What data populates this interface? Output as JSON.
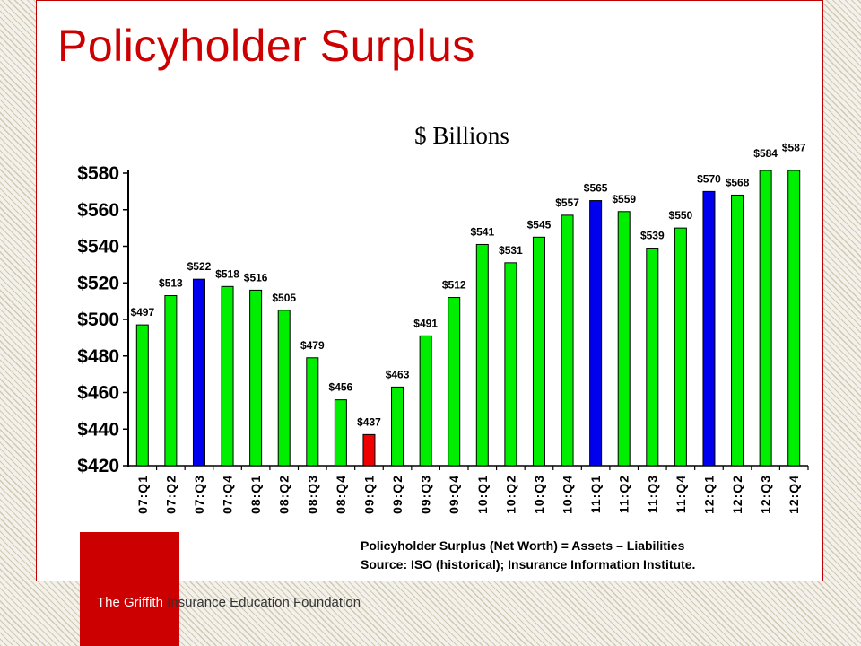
{
  "title": "Policyholder Surplus",
  "footnote": {
    "line1": "Policyholder Surplus  (Net Worth) = Assets – Liabilities",
    "line2": "Source: ISO (historical); Insurance Information Institute."
  },
  "footer": {
    "part1": "The Griffith",
    "part2": " Insurance Education Foundation"
  },
  "colors": {
    "title": "#cc0000",
    "green": "#00ee00",
    "blue": "#0000ee",
    "red": "#ee0000",
    "accent_box": "#cc0000"
  },
  "chart_data": {
    "type": "bar",
    "title": "$ Billions",
    "xlabel": "",
    "ylabel": "",
    "ylim": [
      420,
      580
    ],
    "yticks": [
      420,
      440,
      460,
      480,
      500,
      520,
      540,
      560,
      580
    ],
    "ytick_labels": [
      "$420",
      "$440",
      "$460",
      "$480",
      "$500",
      "$520",
      "$540",
      "$560",
      "$580"
    ],
    "categories": [
      "07:Q1",
      "07:Q2",
      "07:Q3",
      "07:Q4",
      "08:Q1",
      "08:Q2",
      "08:Q3",
      "08:Q4",
      "09:Q1",
      "09:Q2",
      "09:Q3",
      "09:Q4",
      "10:Q1",
      "10:Q2",
      "10:Q3",
      "10:Q4",
      "11:Q1",
      "11:Q2",
      "11:Q3",
      "11:Q4",
      "12:Q1",
      "12:Q2",
      "12:Q3",
      "12:Q4"
    ],
    "values": [
      497,
      513,
      522,
      518,
      516,
      505,
      479,
      456,
      437,
      463,
      491,
      512,
      541,
      531,
      545,
      557,
      565,
      559,
      539,
      550,
      570,
      568,
      584,
      587
    ],
    "labels": [
      "$497",
      "$513",
      "$522",
      "$518",
      "$516",
      "$505",
      "$479",
      "$456",
      "$437",
      "$463",
      "$491",
      "$512",
      "$541",
      "$531",
      "$545",
      "$557",
      "$565",
      "$559",
      "$539",
      "$550",
      "$570",
      "$568",
      "$584",
      "$587"
    ],
    "bar_colors": [
      "green",
      "green",
      "blue",
      "green",
      "green",
      "green",
      "green",
      "green",
      "red",
      "green",
      "green",
      "green",
      "green",
      "green",
      "green",
      "green",
      "blue",
      "green",
      "green",
      "green",
      "blue",
      "green",
      "green",
      "green"
    ],
    "grid": false,
    "legend": "none"
  }
}
